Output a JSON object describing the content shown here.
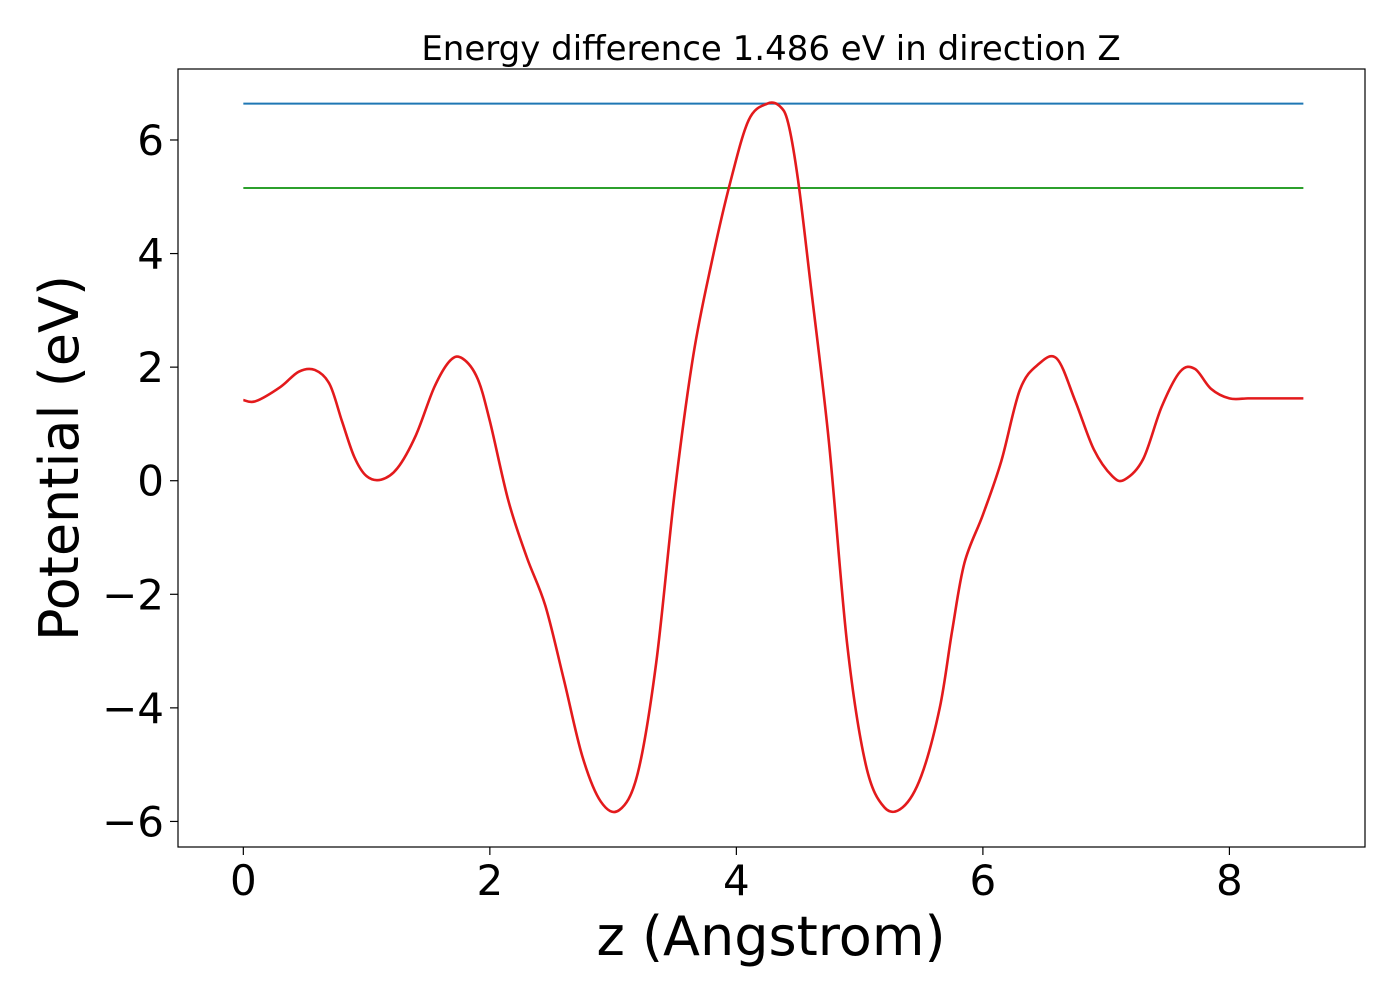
{
  "chart_data": {
    "type": "line",
    "title": "Energy difference 1.486 eV in direction Z",
    "xlabel": "z (Angstrom)",
    "ylabel": "Potential (eV)",
    "xlim": [
      -0.53,
      9.1
    ],
    "ylim": [
      -6.45,
      7.25
    ],
    "xticks": [
      0,
      2,
      4,
      6,
      8
    ],
    "yticks": [
      -6,
      -4,
      -2,
      0,
      2,
      4,
      6
    ],
    "grid": false,
    "series": [
      {
        "kind": "hline",
        "color": "#1f77b4",
        "x": [
          0,
          8.6
        ],
        "y": 6.64
      },
      {
        "kind": "hline",
        "color": "#2ca02c",
        "x": [
          0,
          8.6
        ],
        "y": 5.155
      },
      {
        "kind": "curve",
        "color": "#e31a1c",
        "x": [
          0,
          0.1,
          0.3,
          0.45,
          0.58,
          0.7,
          0.8,
          0.9,
          1.0,
          1.12,
          1.25,
          1.4,
          1.55,
          1.68,
          1.78,
          1.9,
          2.0,
          2.15,
          2.3,
          2.45,
          2.6,
          2.75,
          2.9,
          3.05,
          3.2,
          3.35,
          3.5,
          3.65,
          3.8,
          3.95,
          4.1,
          4.25,
          4.35,
          4.42,
          4.5,
          4.6,
          4.75,
          4.9,
          5.05,
          5.2,
          5.35,
          5.5,
          5.65,
          5.75,
          5.85,
          6.0,
          6.15,
          6.3,
          6.45,
          6.6,
          6.75,
          6.9,
          7.05,
          7.15,
          7.3,
          7.45,
          7.6,
          7.72,
          7.85,
          8.0,
          8.15,
          8.27,
          8.4,
          8.6
        ],
        "y": [
          1.42,
          1.4,
          1.65,
          1.92,
          1.95,
          1.7,
          1.05,
          0.42,
          0.08,
          0.02,
          0.22,
          0.8,
          1.65,
          2.12,
          2.15,
          1.8,
          1.05,
          -0.35,
          -1.35,
          -2.2,
          -3.5,
          -4.85,
          -5.65,
          -5.8,
          -5.15,
          -3.2,
          -0.2,
          2.2,
          3.85,
          5.25,
          6.35,
          6.64,
          6.6,
          6.3,
          5.3,
          3.5,
          0.7,
          -2.9,
          -5.0,
          -5.75,
          -5.75,
          -5.2,
          -4.0,
          -2.65,
          -1.45,
          -0.6,
          0.35,
          1.6,
          2.05,
          2.15,
          1.4,
          0.55,
          0.08,
          0.02,
          0.38,
          1.3,
          1.92,
          1.97,
          1.62,
          1.45,
          1.45,
          1.45,
          1.45,
          1.45
        ]
      }
    ]
  }
}
